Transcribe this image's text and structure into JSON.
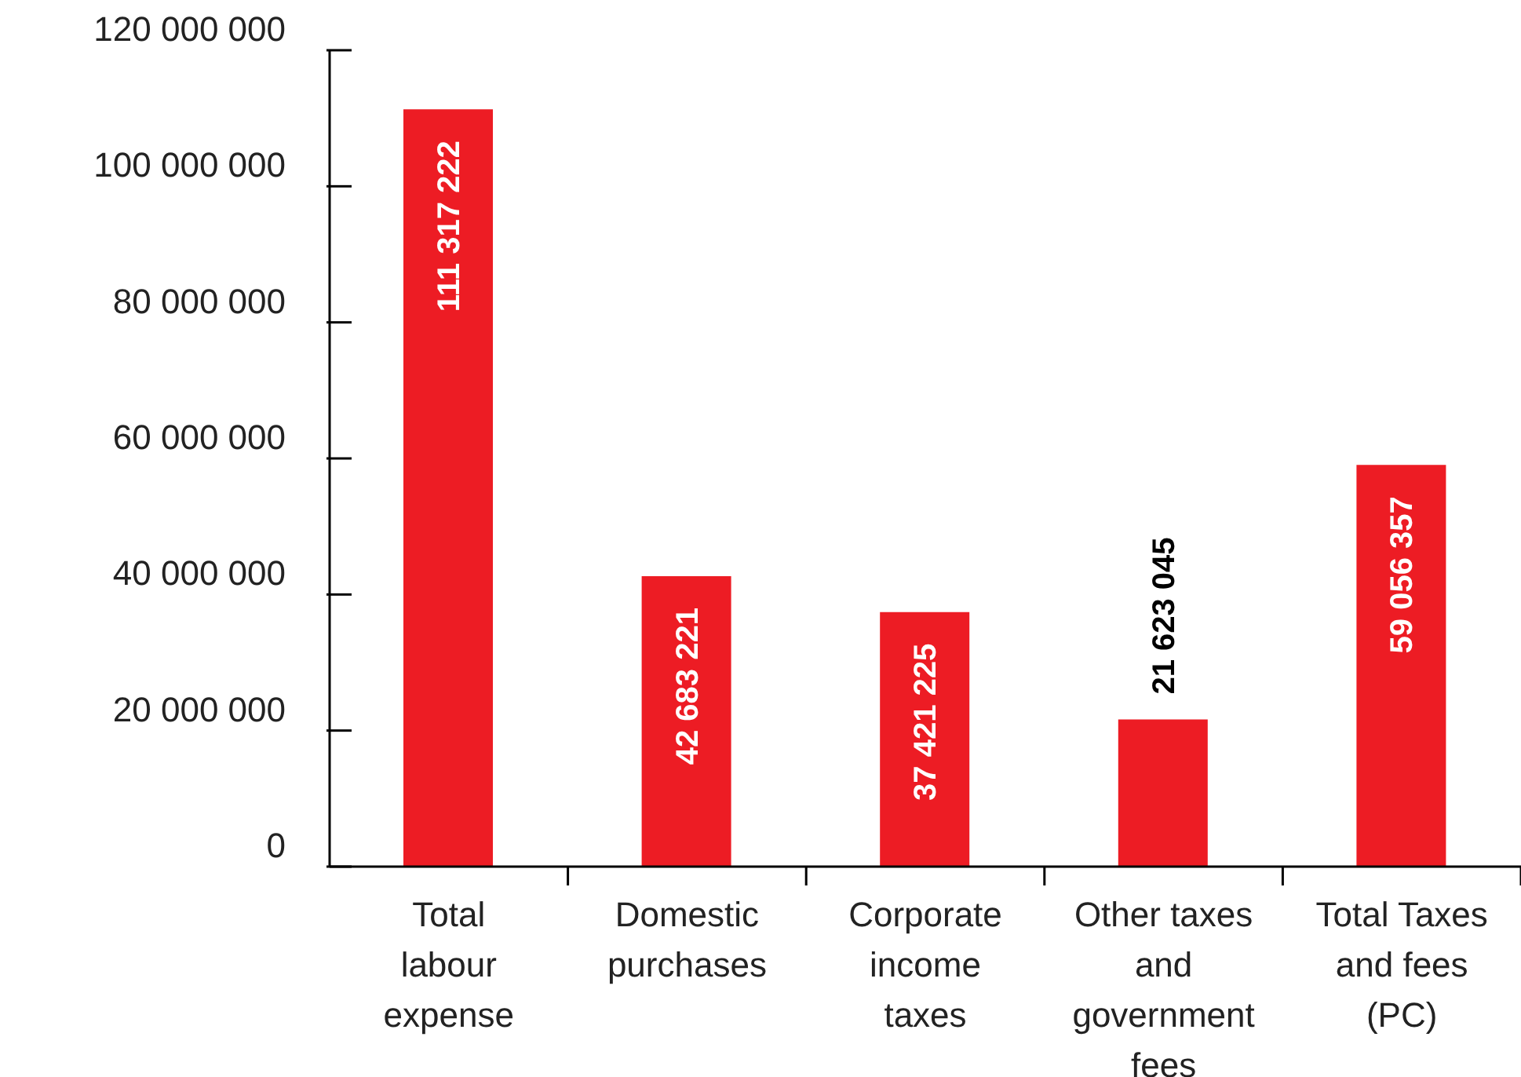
{
  "chart_data": {
    "type": "bar",
    "categories": [
      "Total labour expense",
      "Domestic purchases",
      "Corporate income taxes",
      "Other taxes and government fees",
      "Total Taxes and fees (PC)"
    ],
    "values": [
      111317222,
      42683221,
      37421225,
      21623045,
      59056357
    ],
    "value_labels": [
      "111 317 222",
      "42 683 221",
      "37 421 225",
      "21 623 045",
      "59 056 357"
    ],
    "color": "#ed1c24",
    "ylim": [
      0,
      120000000
    ],
    "yticks": [
      {
        "value": 0,
        "label": "0"
      },
      {
        "value": 20000000,
        "label": "20 000 000"
      },
      {
        "value": 40000000,
        "label": "40 000 000"
      },
      {
        "value": 60000000,
        "label": "60 000 000"
      },
      {
        "value": 80000000,
        "label": "80 000 000"
      },
      {
        "value": 100000000,
        "label": "100 000 000"
      },
      {
        "value": 120000000,
        "label": "120 000 000"
      }
    ],
    "grid": false,
    "legend": false
  }
}
